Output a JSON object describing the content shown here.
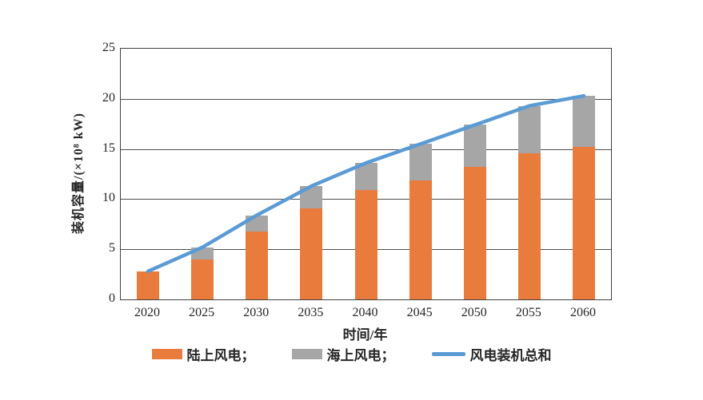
{
  "chart_data": {
    "type": "bar",
    "subtype": "stacked-bar-with-line",
    "categories": [
      "2020",
      "2025",
      "2030",
      "2035",
      "2040",
      "2045",
      "2050",
      "2055",
      "2060"
    ],
    "series": [
      {
        "name": "陆上风电",
        "type": "bar",
        "color": "#E97C3C",
        "values": [
          2.8,
          4.0,
          6.8,
          9.1,
          10.9,
          11.9,
          13.2,
          14.6,
          15.2
        ]
      },
      {
        "name": "海上风电",
        "type": "bar",
        "color": "#A6A6A6",
        "values": [
          0,
          1.2,
          1.6,
          2.2,
          2.7,
          3.6,
          4.2,
          4.7,
          5.1
        ]
      },
      {
        "name": "风电装机总和",
        "type": "line",
        "color": "#5B9BD5",
        "values": [
          2.8,
          5.2,
          8.4,
          11.3,
          13.6,
          15.5,
          17.4,
          19.3,
          20.3
        ]
      }
    ],
    "stacked": true,
    "title": "",
    "xlabel": "时间/年",
    "ylabel": "装机容量/(×10⁸ kW)",
    "ylim": [
      0,
      25
    ],
    "yticks": [
      0,
      5,
      10,
      15,
      20,
      25
    ],
    "grid": true,
    "grid_color": "#4d4d4d",
    "legend_position": "bottom"
  },
  "legend": {
    "items": [
      {
        "label": "陆上风电；",
        "swatch": "orange-rect",
        "color": "#E97C3C"
      },
      {
        "label": "海上风电；",
        "swatch": "gray-rect",
        "color": "#A6A6A6"
      },
      {
        "label": "风电装机总和",
        "swatch": "blue-line",
        "color": "#5B9BD5"
      }
    ]
  },
  "page": {
    "background": "#ffffff"
  }
}
